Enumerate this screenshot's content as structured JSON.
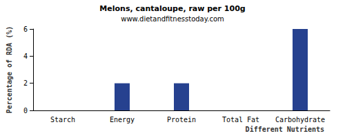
{
  "chart_data": {
    "type": "bar",
    "title": "Melons, cantaloupe, raw per 100g",
    "subtitle": "www.dietandfitnesstoday.com",
    "xlabel": "Different Nutrients",
    "ylabel": "Percentage of RDA (%)",
    "categories": [
      "Starch",
      "Energy",
      "Protein",
      "Total Fat",
      "Carbohydrate"
    ],
    "values": [
      0,
      2,
      2,
      0,
      6
    ],
    "color": "#26418f",
    "ylim": [
      0,
      6
    ],
    "yticks": [
      0,
      2,
      4,
      6
    ],
    "grid": false
  }
}
